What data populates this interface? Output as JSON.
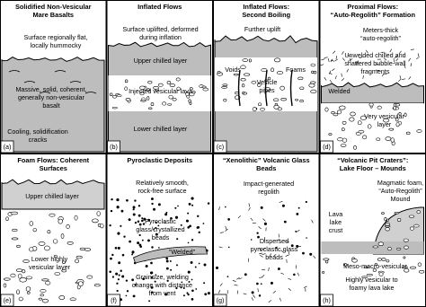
{
  "panels": [
    {
      "title": [
        "Solidified Non-Vesicular",
        "Mare Basalts"
      ],
      "letter": "(a)",
      "labels": [
        [
          "Surface regionally flat,",
          "locally hummocky"
        ],
        [
          "Massive, solid, coherent,",
          "generally non-vesicular",
          "basalt"
        ],
        [
          "Cooling, solidification",
          "cracks"
        ]
      ]
    },
    {
      "title": [
        "Inflated Flows"
      ],
      "letter": "(b)",
      "labels": [
        [
          "Surface uplifted, deformed",
          "during inflation"
        ],
        [
          "Upper chilled layer"
        ],
        [
          "Injected vesicular lava"
        ],
        [
          "Lower chilled layer"
        ]
      ]
    },
    {
      "title": [
        "Inflated Flows:",
        "Second Boiling"
      ],
      "letter": "(c)",
      "labels": [
        [
          "Further uplift"
        ],
        [
          "Voids"
        ],
        [
          "Foams"
        ],
        [
          "Vesicle",
          "pipes"
        ]
      ]
    },
    {
      "title": [
        "Proximal Flows:",
        "“Auto-Regolith” Formation"
      ],
      "letter": "(d)",
      "labels": [
        [
          "Meters-thick",
          "“auto-regolith”"
        ],
        [
          "Unwelded chilled and",
          "shattered bubble-wall",
          "fragments"
        ],
        [
          "Welded"
        ],
        [
          "Very vesicular",
          "layer"
        ]
      ]
    },
    {
      "title": [
        "Foam Flows: Coherent",
        "Surfaces"
      ],
      "letter": "(e)",
      "labels": [
        [
          "Upper chilled layer"
        ],
        [
          "Lower highly",
          "vesicular layer"
        ]
      ]
    },
    {
      "title": [
        "Pyroclastic Deposits"
      ],
      "letter": "(f)",
      "labels": [
        [
          "Relatively smooth,",
          "rock-free surface"
        ],
        [
          "Pyroclastic",
          "glass/crystallized",
          "beads"
        ],
        [
          "“Welded”"
        ],
        [
          "Grainsize, welding",
          "change with distance",
          "from vent"
        ]
      ]
    },
    {
      "title": [
        "“Xenolithic” Volcanic Glass",
        "Beads"
      ],
      "letter": "(g)",
      "labels": [
        [
          "Impact-generated",
          "regolith"
        ],
        [
          "Dispersed",
          "pyroclastic glass",
          "beads"
        ]
      ]
    },
    {
      "title": [
        "“Volcanic Pit Craters”:",
        "Lake Floor – Mounds"
      ],
      "letter": "(h)",
      "labels": [
        [
          "Magmatic foam,",
          "“Auto-Regolith”",
          "Mound"
        ],
        [
          "Lava",
          "lake",
          "crust"
        ],
        [
          "Meso-macro-vesicular"
        ],
        [
          "Highly vesicular to",
          "foamy lava lake"
        ]
      ]
    }
  ]
}
